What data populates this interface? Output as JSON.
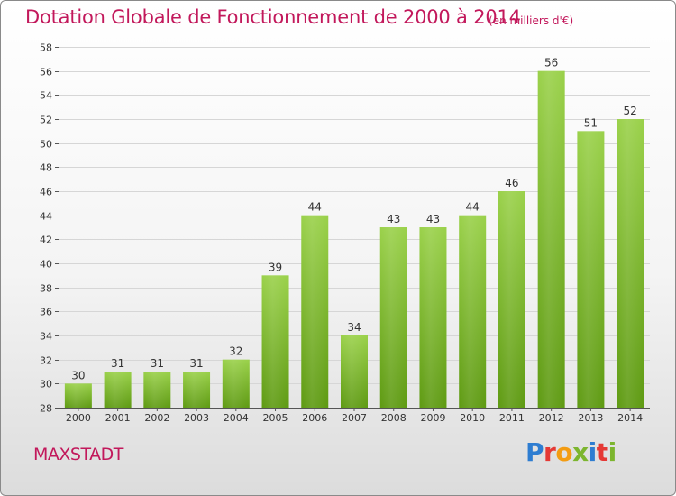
{
  "chart_data": {
    "type": "bar",
    "title": "Dotation Globale de Fonctionnement de 2000 à 2014",
    "subtitle": "(en milliers d'€)",
    "categories": [
      "2000",
      "2001",
      "2002",
      "2003",
      "2004",
      "2005",
      "2006",
      "2007",
      "2008",
      "2009",
      "2010",
      "2011",
      "2012",
      "2013",
      "2014"
    ],
    "values": [
      30,
      31,
      31,
      31,
      32,
      39,
      44,
      34,
      43,
      43,
      44,
      46,
      56,
      51,
      52
    ],
    "xlabel": "",
    "ylabel": "",
    "ylim": [
      28,
      58
    ],
    "yticks": [
      28,
      30,
      32,
      34,
      36,
      38,
      40,
      42,
      44,
      46,
      48,
      50,
      52,
      54,
      56,
      58
    ],
    "grid": true,
    "bar_color": "#7cb52e",
    "title_color": "#c2185b"
  },
  "footer": {
    "commune": "MAXSTADT",
    "logo_text": "Proxiti"
  }
}
